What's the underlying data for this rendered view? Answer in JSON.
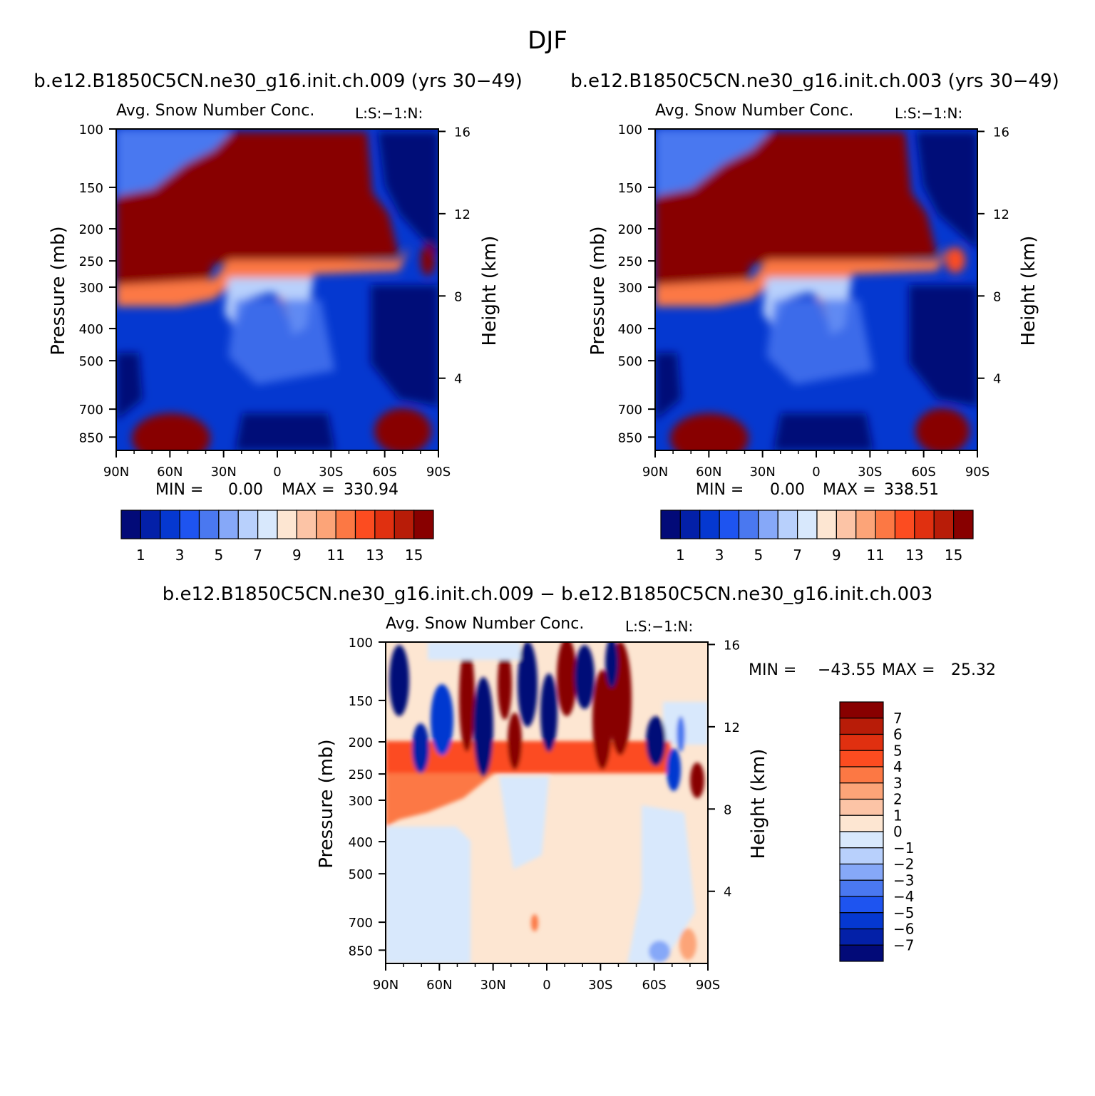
{
  "page_title": "DJF",
  "chart_data": [
    {
      "type": "heatmap",
      "id": "panel-a",
      "title": "b.e12.B1850C5CN.ne30_g16.init.ch.009 (yrs 30-49)",
      "subtitle": "Avg. Snow Number Conc.",
      "units_label": "L:S:-1:N:",
      "ylabel": "Pressure (mb)",
      "ylabel_right": "Height (km)",
      "x_ticks": [
        "90N",
        "60N",
        "30N",
        "0",
        "30S",
        "60S",
        "90S"
      ],
      "y_ticks": [
        "100",
        "150",
        "200",
        "250",
        "300",
        "400",
        "500",
        "700",
        "850"
      ],
      "y2_ticks": [
        "16",
        "12",
        "8",
        "4"
      ],
      "stats": {
        "min_label": "MIN =",
        "min": "0.00",
        "max_label": "MAX =",
        "max": "330.94"
      },
      "colorbar_labels": [
        "1",
        "3",
        "5",
        "7",
        "9",
        "11",
        "13",
        "15"
      ]
    },
    {
      "type": "heatmap",
      "id": "panel-b",
      "title": "b.e12.B1850C5CN.ne30_g16.init.ch.003 (yrs 30-49)",
      "subtitle": "Avg. Snow Number Conc.",
      "units_label": "L:S:-1:N:",
      "ylabel": "Pressure (mb)",
      "ylabel_right": "Height (km)",
      "x_ticks": [
        "90N",
        "60N",
        "30N",
        "0",
        "30S",
        "60S",
        "90S"
      ],
      "y_ticks": [
        "100",
        "150",
        "200",
        "250",
        "300",
        "400",
        "500",
        "700",
        "850"
      ],
      "y2_ticks": [
        "16",
        "12",
        "8",
        "4"
      ],
      "stats": {
        "min_label": "MIN =",
        "min": "0.00",
        "max_label": "MAX =",
        "max": "338.51"
      },
      "colorbar_labels": [
        "1",
        "3",
        "5",
        "7",
        "9",
        "11",
        "13",
        "15"
      ]
    },
    {
      "type": "heatmap",
      "id": "panel-diff",
      "title": "b.e12.B1850C5CN.ne30_g16.init.ch.009 - b.e12.B1850C5CN.ne30_g16.init.ch.003",
      "subtitle": "Avg. Snow Number Conc.",
      "units_label": "L:S:-1:N:",
      "ylabel": "Pressure (mb)",
      "ylabel_right": "Height (km)",
      "x_ticks": [
        "90N",
        "60N",
        "30N",
        "0",
        "30S",
        "60S",
        "90S"
      ],
      "y_ticks": [
        "100",
        "150",
        "200",
        "250",
        "300",
        "400",
        "500",
        "700",
        "850"
      ],
      "y2_ticks": [
        "16",
        "12",
        "8",
        "4"
      ],
      "stats": {
        "min_label": "MIN =",
        "min": "-43.55",
        "max_label": "MAX =",
        "max": "25.32"
      },
      "colorbar_labels": [
        "7",
        "6",
        "5",
        "4",
        "3",
        "2",
        "1",
        "0",
        "-1",
        "-2",
        "-3",
        "-4",
        "-5",
        "-6",
        "-7"
      ]
    }
  ],
  "palette": [
    "#020a78",
    "#0320a8",
    "#0538d0",
    "#1e54f0",
    "#4a78f0",
    "#86a8f8",
    "#b8d0fc",
    "#d8e8fc",
    "#fde6d2",
    "#fcc4a6",
    "#fca478",
    "#fc7844",
    "#fc4c20",
    "#e03010",
    "#b81c08",
    "#880000"
  ]
}
